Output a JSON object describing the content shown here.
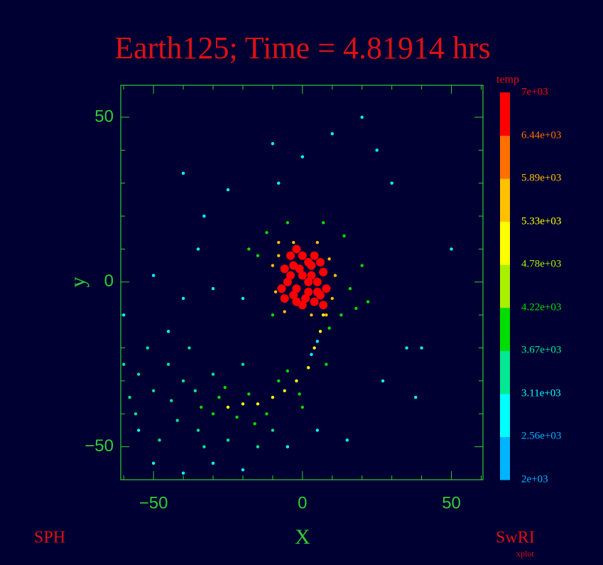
{
  "chart_data": {
    "type": "scatter",
    "title": "Earth125; Time = 4.81914 hrs",
    "x_label": "X",
    "y_label": "y",
    "footer_left": "SPH",
    "footer_right": "SwRI",
    "footer_right_sub": "xplot",
    "xlim": [
      -61,
      60.6
    ],
    "ylim": [
      -60,
      59.7
    ],
    "xticks": [
      {
        "value": -50,
        "label": "−50"
      },
      0,
      50
    ],
    "yticks": [
      {
        "value": -50,
        "label": "−50"
      },
      0,
      50
    ],
    "xminorticks": [
      -60,
      -40,
      -30,
      -20,
      -10,
      10,
      20,
      30,
      40,
      60
    ],
    "yminorticks": [
      -40,
      -30,
      -20,
      -10,
      10,
      20,
      30,
      40
    ],
    "frame_color": "#33cc33",
    "title_color": "#dd1111",
    "x": [
      0,
      -3,
      3,
      5,
      -5,
      -2,
      2,
      6,
      -6,
      0,
      4,
      -4,
      7,
      -7,
      1,
      4,
      8,
      -2,
      2,
      -1,
      3,
      -3,
      6,
      -6,
      0,
      7,
      5,
      -4,
      2,
      -2,
      -8,
      9,
      -9,
      10,
      -3,
      5,
      -10,
      11,
      3,
      -6,
      8,
      -8,
      -12,
      14,
      -15,
      16,
      13,
      -10,
      20,
      -18,
      18,
      7,
      -5,
      22,
      7,
      6,
      4,
      2,
      -2,
      -6,
      -10,
      -15,
      -20,
      -25,
      5,
      3,
      9,
      -1,
      -8,
      -12,
      -18,
      -22,
      -28,
      -30,
      -5,
      0,
      8,
      -16,
      -26,
      -34,
      -40,
      -45,
      -50,
      -55,
      -58,
      -35,
      -42,
      -48,
      -38,
      -30,
      -25,
      -20,
      -52,
      -56,
      -44,
      -33,
      -15,
      -10,
      -60,
      -36,
      -55,
      -50,
      -40,
      -30,
      -20,
      -5,
      5,
      -45,
      -40,
      -60,
      -30,
      -20,
      -35,
      -25,
      -10,
      0,
      20,
      25,
      30,
      -40,
      -50,
      15,
      35,
      40,
      38,
      50,
      -33,
      10,
      -8,
      27
    ],
    "y": [
      2,
      5,
      5,
      0,
      0,
      -2,
      -3,
      -4,
      4,
      8,
      8,
      8,
      3,
      -2,
      -5,
      -6,
      -2,
      10,
      0,
      4,
      2,
      -4,
      6,
      -5,
      -7,
      -7,
      -3,
      2,
      6,
      -6,
      8,
      7,
      -3,
      -5,
      12,
      12,
      5,
      2,
      -10,
      -9,
      -10,
      12,
      15,
      14,
      8,
      -2,
      -10,
      -10,
      5,
      10,
      -8,
      18,
      18,
      -6,
      -10,
      -15,
      -20,
      -26,
      -30,
      -33,
      -35,
      -37,
      -37,
      -38,
      -18,
      -22,
      -14,
      -34,
      -30,
      -40,
      -34,
      -41,
      -35,
      -40,
      -27,
      -38,
      -25,
      -43,
      -32,
      -38,
      -30,
      -25,
      -33,
      -28,
      -35,
      -45,
      -42,
      -48,
      -20,
      -28,
      -48,
      -25,
      -20,
      -40,
      -36,
      -50,
      -50,
      -45,
      -25,
      -33,
      -45,
      -55,
      -58,
      -55,
      -57,
      -50,
      -45,
      -15,
      -5,
      -10,
      -2,
      -5,
      10,
      28,
      42,
      38,
      50,
      40,
      30,
      33,
      2,
      -48,
      -20,
      -20,
      -35,
      10,
      20,
      45,
      30,
      -30
    ],
    "temp": [
      6800,
      6800,
      6800,
      6800,
      6800,
      6800,
      6800,
      6800,
      6800,
      6800,
      6800,
      6800,
      6800,
      6800,
      6800,
      6800,
      6800,
      6800,
      6800,
      6800,
      6800,
      6800,
      6800,
      6800,
      6800,
      6800,
      6800,
      6800,
      6800,
      6800,
      5500,
      5500,
      5500,
      5500,
      5500,
      5500,
      5500,
      5500,
      5500,
      5500,
      5500,
      5500,
      4000,
      4000,
      4000,
      4000,
      4000,
      4000,
      4000,
      4000,
      4000,
      4000,
      4000,
      4000,
      5200,
      5200,
      5200,
      5200,
      5200,
      5200,
      5200,
      5200,
      5200,
      5200,
      3000,
      3000,
      3900,
      3900,
      3900,
      3900,
      3900,
      3900,
      3900,
      3900,
      3900,
      3900,
      3900,
      3900,
      3900,
      3900,
      3400,
      3400,
      3400,
      3400,
      3400,
      3400,
      3400,
      3400,
      3400,
      3400,
      3400,
      3400,
      3400,
      3400,
      3400,
      3400,
      3400,
      3400,
      3400,
      3400,
      2900,
      2900,
      2900,
      2900,
      2900,
      2900,
      2900,
      2900,
      2900,
      2900,
      2900,
      2900,
      2900,
      2900,
      2900,
      2900,
      2900,
      2900,
      2900,
      2900,
      2900,
      2900,
      2900,
      2900,
      2900,
      2900,
      2900,
      2900,
      2900,
      2900
    ],
    "colorbar": {
      "title": "temp",
      "lim": [
        2000,
        7000
      ],
      "ticks": [
        {
          "value": 2000,
          "label": "2e+03"
        },
        {
          "value": 2560,
          "label": "2.56e+03"
        },
        {
          "value": 3110,
          "label": "3.11e+03"
        },
        {
          "value": 3670,
          "label": "3.67e+03"
        },
        {
          "value": 4220,
          "label": "4.22e+03"
        },
        {
          "value": 4780,
          "label": "4.78e+03"
        },
        {
          "value": 5330,
          "label": "5.33e+03"
        },
        {
          "value": 5890,
          "label": "5.89e+03"
        },
        {
          "value": 6440,
          "label": "6.44e+03"
        },
        {
          "value": 7000,
          "label": "7e+03"
        }
      ],
      "colors": [
        "#00b4ff",
        "#00ffff",
        "#00e890",
        "#00dd00",
        "#a8f000",
        "#ffff00",
        "#ffc000",
        "#ff7000",
        "#ff0000"
      ]
    }
  }
}
